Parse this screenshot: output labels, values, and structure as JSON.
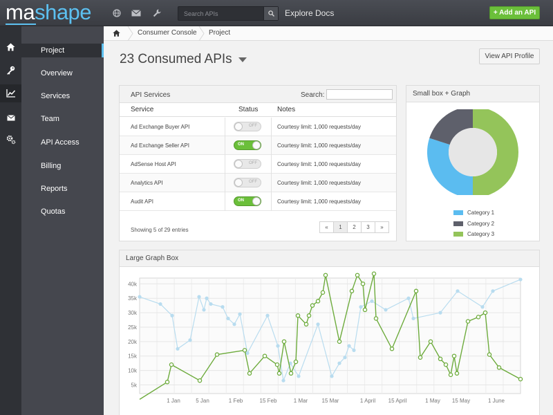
{
  "topbar": {
    "logo_ma": "ma",
    "logo_shape": "shape",
    "icons": [
      "globe-icon",
      "mail-icon",
      "wrench-icon"
    ],
    "search_placeholder": "Search APIs",
    "links": [
      "Explore",
      "Docs"
    ],
    "add_api_label": "+ Add an API"
  },
  "iconbar": [
    "home-icon",
    "key-icon",
    "chart-icon",
    "mail-icon",
    "gear-icon"
  ],
  "sidebar": {
    "items": [
      {
        "label": "Project",
        "active": true
      },
      {
        "label": "Overview"
      },
      {
        "label": "Services"
      },
      {
        "label": "Team"
      },
      {
        "label": "API Access"
      },
      {
        "label": "Billing"
      },
      {
        "label": "Reports"
      },
      {
        "label": "Quotas"
      }
    ]
  },
  "breadcrumb": [
    "Consumer Console",
    "Project"
  ],
  "page": {
    "title": "23 Consumed APIs",
    "view_profile_label": "View API Profile"
  },
  "services_panel": {
    "title": "API Services",
    "search_label": "Search:",
    "columns": [
      "Service",
      "Status",
      "Notes"
    ],
    "rows": [
      {
        "service": "Ad Exchange Buyer API",
        "status": "OFF",
        "notes": "Courtesy limit: 1,000 requests/day"
      },
      {
        "service": "Ad Exchange Seller API",
        "status": "ON",
        "notes": "Courtesy limit: 1,000 requests/day"
      },
      {
        "service": "AdSense Host API",
        "status": "OFF",
        "notes": "Courtesy limit: 1,000 requests/day"
      },
      {
        "service": "Analytics API",
        "status": "OFF",
        "notes": "Courtesy limit: 1,000 requests/day"
      },
      {
        "service": "Audit API",
        "status": "ON",
        "notes": "Courtesy limit: 1,000 requests/day"
      }
    ],
    "showing_text": "Showing 5 of 29 entries",
    "pager": [
      "«",
      "1",
      "2",
      "3",
      "»"
    ]
  },
  "small_box": {
    "title": "Small box + Graph"
  },
  "large_box": {
    "title": "Large Graph Box"
  },
  "colors": {
    "accent": "#5cc0f0",
    "green": "#6bbf3a",
    "cat1": "#5bbcf0",
    "cat2": "#5e606b",
    "cat3": "#94c45a"
  },
  "chart_data": [
    {
      "type": "pie",
      "title": "Small box + Graph",
      "donut": true,
      "categories": [
        "Category 1",
        "Category 2",
        "Category 3"
      ],
      "values": [
        30,
        20,
        50
      ],
      "colors": [
        "#5bbcf0",
        "#5e606b",
        "#94c45a"
      ],
      "legend": "bottom"
    },
    {
      "type": "line",
      "title": "Large Graph Box",
      "x_ticks": [
        "1 Jan",
        "5 Jan",
        "1 Feb",
        "15 Feb",
        "1 Mar",
        "15 Mar",
        "1 April",
        "15 April",
        "1 May",
        "15 May",
        "1 June"
      ],
      "y_ticks": [
        "5k",
        "10k",
        "15k",
        "20k",
        "25k",
        "30k",
        "35k",
        "40k"
      ],
      "ylim": [
        2000,
        42000
      ],
      "grid": true,
      "series": [
        {
          "color": "#b8dcef",
          "points": [
            [
              0,
              35500
            ],
            [
              30,
              33000
            ],
            [
              47,
              29000
            ],
            [
              55,
              17500
            ],
            [
              73,
              20500
            ],
            [
              86,
              35500
            ],
            [
              93,
              31000
            ],
            [
              97,
              35000
            ],
            [
              103,
              33000
            ],
            [
              120,
              32000
            ],
            [
              128,
              28000
            ],
            [
              137,
              26000
            ],
            [
              145,
              29500
            ],
            [
              156,
              16000
            ],
            [
              185,
              29000
            ],
            [
              200,
              18500
            ],
            [
              208,
              6500
            ],
            [
              218,
              12500
            ],
            [
              230,
              8000
            ],
            [
              258,
              26000
            ],
            [
              278,
              8000
            ],
            [
              289,
              12500
            ],
            [
              297,
              14500
            ],
            [
              303,
              18500
            ],
            [
              310,
              17000
            ],
            [
              320,
              32000
            ],
            [
              336,
              34000
            ],
            [
              356,
              31000
            ],
            [
              389,
              35000
            ],
            [
              396,
              28000
            ],
            [
              435,
              30000
            ],
            [
              460,
              37500
            ],
            [
              496,
              32000
            ],
            [
              511,
              37500
            ],
            [
              551,
              41500
            ]
          ]
        },
        {
          "color": "#6dab3c",
          "points": [
            [
              0,
              0
            ],
            [
              40,
              6000
            ],
            [
              46,
              12000
            ],
            [
              87,
              6500
            ],
            [
              112,
              15500
            ],
            [
              152,
              17000
            ],
            [
              159,
              9000
            ],
            [
              181,
              15000
            ],
            [
              199,
              12000
            ],
            [
              202,
              9000
            ],
            [
              209,
              20000
            ],
            [
              219,
              9000
            ],
            [
              226,
              13000
            ],
            [
              229,
              29000
            ],
            [
              241,
              26000
            ],
            [
              245,
              29000
            ],
            [
              250,
              32500
            ],
            [
              258,
              34000
            ],
            [
              265,
              37000
            ],
            [
              269,
              43000
            ],
            [
              289,
              20000
            ],
            [
              307,
              37500
            ],
            [
              315,
              43000
            ],
            [
              323,
              40000
            ],
            [
              326,
              31000
            ],
            [
              339,
              43500
            ],
            [
              342,
              28000
            ],
            [
              365,
              17500
            ],
            [
              400,
              37500
            ],
            [
              406,
              14500
            ],
            [
              421,
              20000
            ],
            [
              435,
              14000
            ],
            [
              443,
              12000
            ],
            [
              450,
              8500
            ],
            [
              455,
              15000
            ],
            [
              459,
              9000
            ],
            [
              475,
              27000
            ],
            [
              490,
              28500
            ],
            [
              500,
              30000
            ],
            [
              506,
              15500
            ],
            [
              520,
              11000
            ],
            [
              551,
              7000
            ]
          ]
        }
      ]
    }
  ]
}
